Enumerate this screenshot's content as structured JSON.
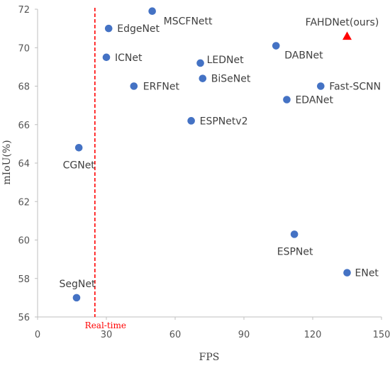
{
  "chart_data": {
    "type": "scatter",
    "title": "",
    "xlabel": "FPS",
    "ylabel": "mIoU(%)",
    "xlim": [
      0,
      150
    ],
    "ylim": [
      56,
      72
    ],
    "xticks": [
      "0",
      "30",
      "60",
      "90",
      "120",
      "150"
    ],
    "yticks": [
      "56",
      "58",
      "60",
      "62",
      "64",
      "66",
      "68",
      "70",
      "72"
    ],
    "grid": false,
    "colors": {
      "points": "#4472c4",
      "ours": "#ff0000",
      "realtime": "#ff0000",
      "axis": "#bfbfbf"
    },
    "points": [
      {
        "name": "MSCFNett",
        "x": 50,
        "y": 71.9,
        "marker": "circle"
      },
      {
        "name": "EdgeNet",
        "x": 31,
        "y": 71.0,
        "marker": "circle"
      },
      {
        "name": "ICNet",
        "x": 30,
        "y": 69.5,
        "marker": "circle"
      },
      {
        "name": "LEDNet",
        "x": 71,
        "y": 69.2,
        "marker": "circle"
      },
      {
        "name": "DABNet",
        "x": 104,
        "y": 70.1,
        "marker": "circle"
      },
      {
        "name": "FAHDNet(ours)",
        "x": 135,
        "y": 70.6,
        "marker": "triangle"
      },
      {
        "name": "BiSeNet",
        "x": 72,
        "y": 68.4,
        "marker": "circle"
      },
      {
        "name": "ERFNet",
        "x": 42,
        "y": 68.0,
        "marker": "circle"
      },
      {
        "name": "Fast-SCNN",
        "x": 123.5,
        "y": 68.0,
        "marker": "circle"
      },
      {
        "name": "EDANet",
        "x": 108.7,
        "y": 67.3,
        "marker": "circle"
      },
      {
        "name": "ESPNetv2",
        "x": 67,
        "y": 66.2,
        "marker": "circle"
      },
      {
        "name": "CGNet",
        "x": 18,
        "y": 64.8,
        "marker": "circle"
      },
      {
        "name": "ESPNet",
        "x": 112,
        "y": 60.3,
        "marker": "circle"
      },
      {
        "name": "ENet",
        "x": 135,
        "y": 58.3,
        "marker": "circle"
      },
      {
        "name": "SegNet",
        "x": 17,
        "y": 57.0,
        "marker": "circle"
      }
    ],
    "annotations": [
      {
        "text": "Real-time",
        "x": 25,
        "line": "vertical-dashed"
      }
    ]
  }
}
